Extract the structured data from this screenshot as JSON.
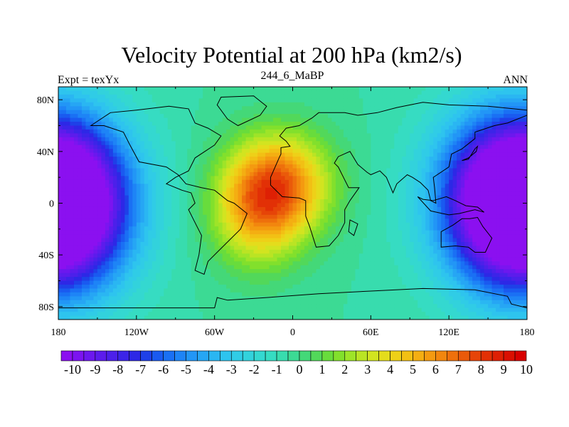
{
  "title": "Velocity Potential at 200 hPa (km2/s)",
  "left_string": "Expt = texYx",
  "center_string": "244_6_MaBP",
  "right_string": "ANN",
  "map": {
    "projection": "cylindrical-equidistant",
    "lon_range": [
      -180,
      180
    ],
    "lat_range": [
      -90,
      90
    ],
    "x_ticks": [
      {
        "value": -180,
        "label": "180"
      },
      {
        "value": -120,
        "label": "120W"
      },
      {
        "value": -60,
        "label": "60W"
      },
      {
        "value": 0,
        "label": "0"
      },
      {
        "value": 60,
        "label": "60E"
      },
      {
        "value": 120,
        "label": "120E"
      },
      {
        "value": 180,
        "label": "180"
      }
    ],
    "y_ticks": [
      {
        "value": 80,
        "label": "80N"
      },
      {
        "value": 40,
        "label": "40N"
      },
      {
        "value": 0,
        "label": "0"
      },
      {
        "value": -40,
        "label": "40S"
      },
      {
        "value": -80,
        "label": "80S"
      }
    ],
    "field": {
      "background": 0.0,
      "centers": [
        {
          "name": "max",
          "lon": -10,
          "lat": 15,
          "amp": 6.5,
          "sx": 28,
          "sy": 28
        },
        {
          "name": "max2",
          "lon": -28,
          "lat": -10,
          "amp": 4.0,
          "sx": 25,
          "sy": 30
        },
        {
          "name": "min-east",
          "lon": 170,
          "lat": 5,
          "amp": -9,
          "sx": 40,
          "sy": 45
        },
        {
          "name": "min-west",
          "lon": -180,
          "lat": -5,
          "amp": -9,
          "sx": 38,
          "sy": 45
        }
      ]
    }
  },
  "colorbar": {
    "levels": [
      -10,
      -9.5,
      -9,
      -8.5,
      -8,
      -7.5,
      -7,
      -6.5,
      -6,
      -5.5,
      -5,
      -4.5,
      -4,
      -3.5,
      -3,
      -2.5,
      -2,
      -1.5,
      -1,
      -0.5,
      0,
      0.5,
      1,
      1.5,
      2,
      2.5,
      3,
      3.5,
      4,
      4.5,
      5,
      5.5,
      6,
      6.5,
      7,
      7.5,
      8,
      8.5,
      9,
      9.5,
      10
    ],
    "labels": [
      "-10",
      "-9",
      "-8",
      "-7",
      "-6",
      "-5",
      "-4",
      "-3",
      "-2",
      "-1",
      "0",
      "1",
      "2",
      "3",
      "4",
      "5",
      "6",
      "7",
      "8",
      "9",
      "10"
    ],
    "colors": [
      "#8b10f0",
      "#7c14f0",
      "#6c18ee",
      "#5c1cec",
      "#4c20ea",
      "#3c24e8",
      "#2d28e6",
      "#1f40e8",
      "#1a5af0",
      "#1a70f4",
      "#1e84f6",
      "#2296f6",
      "#26a6f4",
      "#2ab6f2",
      "#2ec4ee",
      "#30cce6",
      "#32d2dc",
      "#34d8d0",
      "#36dcc2",
      "#38dcae",
      "#3cda94",
      "#44d878",
      "#52d85a",
      "#68dc3c",
      "#82e02c",
      "#9ee428",
      "#bae424",
      "#d2e420",
      "#e4dc1c",
      "#eed018",
      "#f2c014",
      "#f4ae12",
      "#f49a10",
      "#f2860e",
      "#ee700c",
      "#ea5a0a",
      "#e64408",
      "#e23006",
      "#de2004",
      "#da1002",
      "#d80000"
    ]
  },
  "continents": [
    {
      "name": "americas",
      "points": [
        [
          -155,
          60
        ],
        [
          -140,
          70
        ],
        [
          -120,
          72
        ],
        [
          -95,
          75
        ],
        [
          -80,
          73
        ],
        [
          -75,
          62
        ],
        [
          -65,
          58
        ],
        [
          -55,
          52
        ],
        [
          -60,
          45
        ],
        [
          -75,
          35
        ],
        [
          -80,
          25
        ],
        [
          -90,
          20
        ],
        [
          -97,
          15
        ],
        [
          -85,
          10
        ],
        [
          -78,
          8
        ],
        [
          -75,
          0
        ],
        [
          -80,
          -5
        ],
        [
          -75,
          -15
        ],
        [
          -70,
          -25
        ],
        [
          -72,
          -40
        ],
        [
          -75,
          -52
        ],
        [
          -68,
          -55
        ],
        [
          -65,
          -45
        ],
        [
          -58,
          -38
        ],
        [
          -48,
          -28
        ],
        [
          -40,
          -20
        ],
        [
          -35,
          -8
        ],
        [
          -45,
          0
        ],
        [
          -50,
          2
        ],
        [
          -60,
          10
        ],
        [
          -70,
          12
        ],
        [
          -82,
          15
        ],
        [
          -88,
          22
        ],
        [
          -97,
          28
        ],
        [
          -118,
          32
        ],
        [
          -125,
          45
        ],
        [
          -130,
          55
        ],
        [
          -145,
          60
        ],
        [
          -155,
          60
        ]
      ]
    },
    {
      "name": "greenland",
      "points": [
        [
          -55,
          82
        ],
        [
          -30,
          83
        ],
        [
          -20,
          75
        ],
        [
          -25,
          68
        ],
        [
          -42,
          60
        ],
        [
          -50,
          65
        ],
        [
          -58,
          76
        ],
        [
          -55,
          82
        ]
      ]
    },
    {
      "name": "eurasia-africa",
      "points": [
        [
          -10,
          36
        ],
        [
          -17,
          20
        ],
        [
          -17,
          14
        ],
        [
          -8,
          5
        ],
        [
          5,
          4
        ],
        [
          10,
          2
        ],
        [
          10,
          -10
        ],
        [
          13,
          -18
        ],
        [
          18,
          -34
        ],
        [
          28,
          -33
        ],
        [
          35,
          -25
        ],
        [
          40,
          -15
        ],
        [
          40,
          -5
        ],
        [
          44,
          2
        ],
        [
          51,
          12
        ],
        [
          43,
          12
        ],
        [
          40,
          18
        ],
        [
          35,
          28
        ],
        [
          32,
          31
        ],
        [
          35,
          36
        ],
        [
          44,
          40
        ],
        [
          50,
          30
        ],
        [
          57,
          24
        ],
        [
          60,
          22
        ],
        [
          67,
          25
        ],
        [
          72,
          20
        ],
        [
          77,
          8
        ],
        [
          80,
          15
        ],
        [
          88,
          22
        ],
        [
          92,
          20
        ],
        [
          98,
          16
        ],
        [
          104,
          10
        ],
        [
          106,
          2
        ],
        [
          110,
          0
        ],
        [
          109,
          12
        ],
        [
          108,
          20
        ],
        [
          120,
          28
        ],
        [
          122,
          38
        ],
        [
          130,
          42
        ],
        [
          140,
          50
        ],
        [
          140,
          55
        ],
        [
          155,
          60
        ],
        [
          165,
          62
        ],
        [
          180,
          68
        ],
        [
          180,
          72
        ],
        [
          150,
          75
        ],
        [
          120,
          76
        ],
        [
          100,
          78
        ],
        [
          80,
          74
        ],
        [
          65,
          70
        ],
        [
          50,
          68
        ],
        [
          40,
          70
        ],
        [
          30,
          70
        ],
        [
          20,
          70
        ],
        [
          15,
          66
        ],
        [
          5,
          60
        ],
        [
          -5,
          58
        ],
        [
          -10,
          52
        ],
        [
          -5,
          48
        ],
        [
          -2,
          44
        ],
        [
          -9,
          43
        ],
        [
          -9,
          38
        ],
        [
          -10,
          36
        ]
      ]
    },
    {
      "name": "madagascar",
      "points": [
        [
          44,
          -13
        ],
        [
          50,
          -16
        ],
        [
          47,
          -25
        ],
        [
          43,
          -22
        ],
        [
          44,
          -13
        ]
      ]
    },
    {
      "name": "indonesia",
      "points": [
        [
          96,
          5
        ],
        [
          106,
          -6
        ],
        [
          115,
          -8
        ],
        [
          120,
          -9
        ],
        [
          128,
          -8
        ],
        [
          140,
          -5
        ],
        [
          147,
          -7
        ],
        [
          142,
          -3
        ],
        [
          133,
          -2
        ],
        [
          125,
          2
        ],
        [
          118,
          5
        ],
        [
          108,
          2
        ],
        [
          100,
          3
        ],
        [
          96,
          5
        ]
      ]
    },
    {
      "name": "australia",
      "points": [
        [
          114,
          -22
        ],
        [
          114,
          -34
        ],
        [
          125,
          -33
        ],
        [
          135,
          -34
        ],
        [
          140,
          -38
        ],
        [
          148,
          -38
        ],
        [
          153,
          -27
        ],
        [
          146,
          -18
        ],
        [
          142,
          -11
        ],
        [
          136,
          -12
        ],
        [
          130,
          -12
        ],
        [
          123,
          -17
        ],
        [
          114,
          -22
        ]
      ]
    },
    {
      "name": "antarctica",
      "points": [
        [
          -180,
          -81
        ],
        [
          -60,
          -81
        ],
        [
          -58,
          -73
        ],
        [
          -50,
          -75
        ],
        [
          -20,
          -73
        ],
        [
          20,
          -70
        ],
        [
          60,
          -68
        ],
        [
          100,
          -66
        ],
        [
          140,
          -67
        ],
        [
          165,
          -72
        ],
        [
          168,
          -78
        ],
        [
          180,
          -81
        ],
        [
          180,
          -90
        ],
        [
          -180,
          -90
        ],
        [
          -180,
          -81
        ]
      ]
    },
    {
      "name": "japan-uk",
      "points": [
        [
          130,
          33
        ],
        [
          135,
          35
        ],
        [
          141,
          40
        ],
        [
          142,
          44
        ],
        [
          140,
          42
        ],
        [
          135,
          34
        ],
        [
          130,
          33
        ]
      ]
    }
  ]
}
